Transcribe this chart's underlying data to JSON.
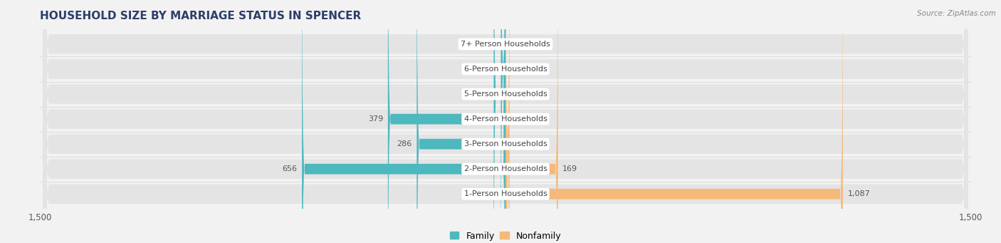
{
  "title": "HOUSEHOLD SIZE BY MARRIAGE STATUS IN SPENCER",
  "source": "Source: ZipAtlas.com",
  "categories": [
    "1-Person Households",
    "2-Person Households",
    "3-Person Households",
    "4-Person Households",
    "5-Person Households",
    "6-Person Households",
    "7+ Person Households"
  ],
  "family_values": [
    0,
    656,
    286,
    379,
    38,
    15,
    0
  ],
  "nonfamily_values": [
    1087,
    169,
    13,
    0,
    0,
    0,
    0
  ],
  "family_color": "#4db8be",
  "nonfamily_color": "#f5b97a",
  "xlim": 1500,
  "background_color": "#f2f2f2",
  "row_bg_color": "#e4e4e4",
  "title_color": "#2c3e6b",
  "label_color": "#555555"
}
